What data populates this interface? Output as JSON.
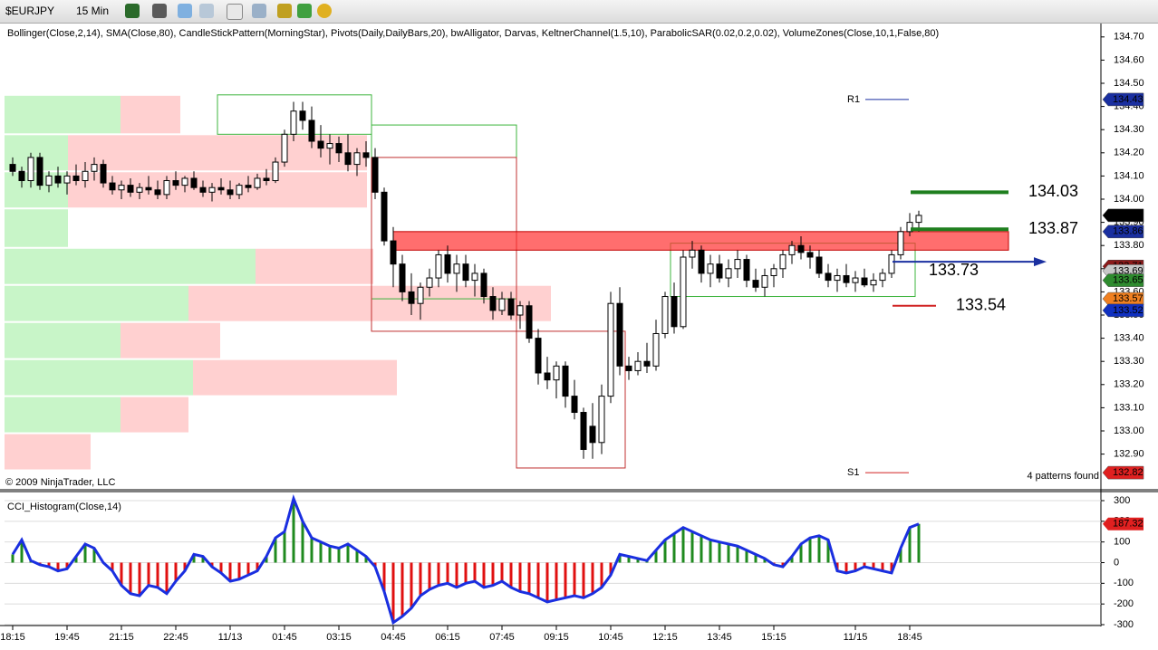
{
  "toolbar": {
    "symbol": "$EURJPY",
    "interval": "15 Min"
  },
  "chart_data": [
    {
      "type": "candlestick",
      "title": "Bollinger(Close,2,14), SMA(Close,80), CandleStickPattern(MorningStar), Pivots(Daily,DailyBars,20), bwAlligator, Darvas, KeltnerChannel(1.5,10), ParabolicSAR(0.02,0.2,0.02), VolumeZones(Close,10,1,False,80)",
      "copyright": "© 2009 NinjaTrader, LLC",
      "status": "4 patterns found",
      "categories": [
        "18:15",
        null,
        null,
        null,
        null,
        null,
        "19:45",
        null,
        null,
        null,
        null,
        null,
        "21:15",
        null,
        null,
        null,
        null,
        null,
        "22:45",
        null,
        null,
        null,
        null,
        null,
        "11/13",
        null,
        null,
        null,
        null,
        null,
        "01:45",
        null,
        null,
        null,
        null,
        null,
        "03:15",
        null,
        null,
        null,
        null,
        null,
        "04:45",
        null,
        null,
        null,
        null,
        null,
        "06:15",
        null,
        null,
        null,
        null,
        null,
        "07:45",
        null,
        null,
        null,
        null,
        null,
        "09:15",
        null,
        null,
        null,
        null,
        null,
        "10:45",
        null,
        null,
        null,
        null,
        null,
        "12:15",
        null,
        null,
        null,
        null,
        null,
        "13:45",
        null,
        null,
        null,
        null,
        null,
        "15:15",
        null,
        null,
        null,
        null,
        null,
        null,
        null,
        null,
        "11/15",
        null,
        null,
        null,
        null,
        null,
        "18:45",
        null
      ],
      "ohlc": [
        [
          134.15,
          134.18,
          134.1,
          134.12
        ],
        [
          134.12,
          134.14,
          134.05,
          134.08
        ],
        [
          134.08,
          134.2,
          134.05,
          134.18
        ],
        [
          134.18,
          134.2,
          134.04,
          134.06
        ],
        [
          134.06,
          134.12,
          134.03,
          134.1
        ],
        [
          134.1,
          134.14,
          134.05,
          134.07
        ],
        [
          134.07,
          134.12,
          134.02,
          134.1
        ],
        [
          134.1,
          134.15,
          134.06,
          134.08
        ],
        [
          134.08,
          134.16,
          134.05,
          134.12
        ],
        [
          134.12,
          134.18,
          134.08,
          134.15
        ],
        [
          134.15,
          134.17,
          134.05,
          134.07
        ],
        [
          134.07,
          134.1,
          134.02,
          134.04
        ],
        [
          134.04,
          134.08,
          134.0,
          134.06
        ],
        [
          134.06,
          134.09,
          134.01,
          134.03
        ],
        [
          134.03,
          134.07,
          134.0,
          134.05
        ],
        [
          134.05,
          134.1,
          134.02,
          134.04
        ],
        [
          134.04,
          134.08,
          134.0,
          134.02
        ],
        [
          134.02,
          134.1,
          134.0,
          134.08
        ],
        [
          134.08,
          134.12,
          134.04,
          134.06
        ],
        [
          134.06,
          134.1,
          134.03,
          134.09
        ],
        [
          134.09,
          134.12,
          134.04,
          134.05
        ],
        [
          134.05,
          134.08,
          134.01,
          134.03
        ],
        [
          134.03,
          134.07,
          133.99,
          134.05
        ],
        [
          134.05,
          134.09,
          134.02,
          134.04
        ],
        [
          134.04,
          134.08,
          134.0,
          134.02
        ],
        [
          134.02,
          134.07,
          134.0,
          134.06
        ],
        [
          134.06,
          134.1,
          134.03,
          134.05
        ],
        [
          134.05,
          134.11,
          134.04,
          134.09
        ],
        [
          134.09,
          134.13,
          134.06,
          134.08
        ],
        [
          134.08,
          134.18,
          134.07,
          134.16
        ],
        [
          134.16,
          134.3,
          134.14,
          134.28
        ],
        [
          134.28,
          134.42,
          134.25,
          134.38
        ],
        [
          134.38,
          134.42,
          134.3,
          134.34
        ],
        [
          134.34,
          134.4,
          134.22,
          134.25
        ],
        [
          134.25,
          134.32,
          134.18,
          134.22
        ],
        [
          134.22,
          134.28,
          134.15,
          134.24
        ],
        [
          134.24,
          134.27,
          134.16,
          134.2
        ],
        [
          134.2,
          134.28,
          134.12,
          134.15
        ],
        [
          134.15,
          134.22,
          134.1,
          134.2
        ],
        [
          134.2,
          134.25,
          134.14,
          134.18
        ],
        [
          134.18,
          134.22,
          134.0,
          134.03
        ],
        [
          134.03,
          134.05,
          133.8,
          133.82
        ],
        [
          133.82,
          133.88,
          133.62,
          133.72
        ],
        [
          133.72,
          133.76,
          133.56,
          133.6
        ],
        [
          133.6,
          133.68,
          133.5,
          133.55
        ],
        [
          133.55,
          133.64,
          133.48,
          133.62
        ],
        [
          133.62,
          133.7,
          133.58,
          133.66
        ],
        [
          133.66,
          133.78,
          133.62,
          133.76
        ],
        [
          133.76,
          133.8,
          133.64,
          133.68
        ],
        [
          133.68,
          133.76,
          133.6,
          133.72
        ],
        [
          133.72,
          133.76,
          133.62,
          133.65
        ],
        [
          133.65,
          133.72,
          133.58,
          133.68
        ],
        [
          133.68,
          133.7,
          133.55,
          133.58
        ],
        [
          133.58,
          133.62,
          133.48,
          133.52
        ],
        [
          133.52,
          133.6,
          133.5,
          133.57
        ],
        [
          133.57,
          133.6,
          133.48,
          133.5
        ],
        [
          133.5,
          133.56,
          133.44,
          133.54
        ],
        [
          133.54,
          133.56,
          133.38,
          133.4
        ],
        [
          133.4,
          133.44,
          133.2,
          133.25
        ],
        [
          133.25,
          133.32,
          133.18,
          133.22
        ],
        [
          133.22,
          133.3,
          133.14,
          133.28
        ],
        [
          133.28,
          133.3,
          133.1,
          133.15
        ],
        [
          133.15,
          133.22,
          133.05,
          133.08
        ],
        [
          133.08,
          133.1,
          132.88,
          132.92
        ],
        [
          133.02,
          133.12,
          132.88,
          132.95
        ],
        [
          132.95,
          133.2,
          132.9,
          133.15
        ],
        [
          133.15,
          133.6,
          133.12,
          133.55
        ],
        [
          133.55,
          133.62,
          133.24,
          133.28
        ],
        [
          133.28,
          133.32,
          133.22,
          133.26
        ],
        [
          133.26,
          133.34,
          133.24,
          133.3
        ],
        [
          133.3,
          133.38,
          133.25,
          133.28
        ],
        [
          133.28,
          133.48,
          133.26,
          133.42
        ],
        [
          133.42,
          133.6,
          133.4,
          133.58
        ],
        [
          133.58,
          133.64,
          133.42,
          133.45
        ],
        [
          133.45,
          133.78,
          133.44,
          133.75
        ],
        [
          133.75,
          133.82,
          133.7,
          133.78
        ],
        [
          133.78,
          133.8,
          133.64,
          133.68
        ],
        [
          133.68,
          133.76,
          133.62,
          133.72
        ],
        [
          133.72,
          133.76,
          133.64,
          133.66
        ],
        [
          133.66,
          133.74,
          133.62,
          133.7
        ],
        [
          133.7,
          133.78,
          133.66,
          133.74
        ],
        [
          133.74,
          133.76,
          133.62,
          133.65
        ],
        [
          133.65,
          133.7,
          133.6,
          133.62
        ],
        [
          133.62,
          133.7,
          133.58,
          133.67
        ],
        [
          133.67,
          133.72,
          133.62,
          133.7
        ],
        [
          133.7,
          133.78,
          133.66,
          133.76
        ],
        [
          133.76,
          133.82,
          133.72,
          133.8
        ],
        [
          133.8,
          133.84,
          133.74,
          133.77
        ],
        [
          133.77,
          133.8,
          133.7,
          133.75
        ],
        [
          133.75,
          133.78,
          133.66,
          133.68
        ],
        [
          133.68,
          133.72,
          133.62,
          133.65
        ],
        [
          133.65,
          133.7,
          133.6,
          133.67
        ],
        [
          133.67,
          133.72,
          133.62,
          133.64
        ],
        [
          133.64,
          133.69,
          133.6,
          133.66
        ],
        [
          133.66,
          133.7,
          133.62,
          133.63
        ],
        [
          133.63,
          133.68,
          133.6,
          133.65
        ],
        [
          133.65,
          133.7,
          133.62,
          133.68
        ],
        [
          133.68,
          133.78,
          133.66,
          133.76
        ],
        [
          133.76,
          133.88,
          133.74,
          133.86
        ],
        [
          133.86,
          133.94,
          133.84,
          133.9
        ],
        [
          133.9,
          133.95,
          133.86,
          133.93
        ]
      ],
      "up_color": "#ffffff",
      "down_color": "#000000",
      "ylim": [
        132.75,
        134.75
      ],
      "yticks": [
        {
          "value": 134.7,
          "label": "134.70"
        },
        {
          "value": 134.6,
          "label": "134.60"
        },
        {
          "value": 134.5,
          "label": "134.50"
        },
        {
          "value": 134.4,
          "label": "134.40"
        },
        {
          "value": 134.3,
          "label": "134.30"
        },
        {
          "value": 134.2,
          "label": "134.20"
        },
        {
          "value": 134.1,
          "label": "134.10"
        },
        {
          "value": 134.0,
          "label": "134.00"
        },
        {
          "value": 133.9,
          "label": "133.90"
        },
        {
          "value": 133.8,
          "label": "133.80"
        },
        {
          "value": 133.7,
          "label": "133.70"
        },
        {
          "value": 133.6,
          "label": "133.60"
        },
        {
          "value": 133.5,
          "label": "133.50"
        },
        {
          "value": 133.4,
          "label": "133.40"
        },
        {
          "value": 133.3,
          "label": "133.30"
        },
        {
          "value": 133.2,
          "label": "133.20"
        },
        {
          "value": 133.1,
          "label": "133.10"
        },
        {
          "value": 133.0,
          "label": "133.00"
        },
        {
          "value": 132.9,
          "label": "132.90"
        }
      ],
      "volume_zones": [
        {
          "range": [
            134.28,
            134.45
          ],
          "up": 128,
          "down": 66
        },
        {
          "range": [
            134.12,
            134.28
          ],
          "up": 70,
          "down": 330
        },
        {
          "range": [
            133.96,
            134.12
          ],
          "up": 70,
          "down": 330
        },
        {
          "range": [
            133.79,
            133.96
          ],
          "up": 70,
          "down": 0
        },
        {
          "range": [
            133.63,
            133.79
          ],
          "up": 277,
          "down": 130
        },
        {
          "range": [
            133.47,
            133.63
          ],
          "up": 203,
          "down": 400
        },
        {
          "range": [
            133.31,
            133.47
          ],
          "up": 128,
          "down": 110
        },
        {
          "range": [
            133.15,
            133.31
          ],
          "up": 208,
          "down": 225
        },
        {
          "range": [
            132.99,
            133.15
          ],
          "up": 128,
          "down": 75
        },
        {
          "range": [
            132.83,
            132.99
          ],
          "up": 0,
          "down": 95
        }
      ],
      "volume_colors": {
        "up": "#c8f5c8",
        "down": "#ffd0d0"
      },
      "darvas_boxes": [
        {
          "from": 23,
          "to": 40,
          "range": [
            134.28,
            134.45
          ],
          "color": "#3cb43c"
        },
        {
          "from": 40,
          "to": 56,
          "range": [
            133.57,
            134.32
          ],
          "color": "#3cb43c"
        },
        {
          "from": 40,
          "to": 56,
          "range": [
            133.43,
            134.18
          ],
          "color": "#c03030"
        },
        {
          "from": 56,
          "to": 68,
          "range": [
            132.84,
            133.43
          ],
          "color": "#c03030"
        },
        {
          "from": 73,
          "to": 100,
          "range": [
            133.58,
            133.81
          ],
          "color": "#3cb43c"
        }
      ],
      "resistance_zone": {
        "range": [
          133.78,
          133.86
        ],
        "color": "#ff3030"
      },
      "pivots": [
        {
          "label": "R1",
          "value": 134.43,
          "color": "#1a2fa0"
        },
        {
          "label": "S1",
          "value": 132.82,
          "color": "#d02020"
        }
      ],
      "levels": [
        {
          "value": 134.03,
          "color": "#1f7f1f",
          "style": "line"
        },
        {
          "value": 133.87,
          "color": "#1f7f1f",
          "style": "line"
        },
        {
          "value": 133.73,
          "color": "#1a2fa0",
          "style": "arrow"
        },
        {
          "value": 133.54,
          "color": "#d02020",
          "style": "line"
        }
      ],
      "price_markers": [
        {
          "value": 134.43,
          "color": "#1a2fa0",
          "text_color": "#fff"
        },
        {
          "value": 133.93,
          "color": "#000000",
          "text_color": "#fff"
        },
        {
          "value": 133.86,
          "color": "#1a2fa0",
          "text_color": "#fff"
        },
        {
          "value": 133.71,
          "color": "#8b1a1a",
          "text_color": "#fff"
        },
        {
          "value": 133.69,
          "color": "#c8c8c8",
          "text_color": "#000"
        },
        {
          "value": 133.65,
          "color": "#2e8b2e",
          "text_color": "#fff"
        },
        {
          "value": 133.57,
          "color": "#f08020",
          "text_color": "#fff"
        },
        {
          "value": 133.52,
          "color": "#1030c0",
          "text_color": "#fff"
        },
        {
          "value": 132.82,
          "color": "#e02020",
          "text_color": "#fff"
        }
      ]
    },
    {
      "type": "histogram",
      "title": "CCI_Histogram(Close,14)",
      "values": [
        40,
        110,
        10,
        -10,
        -20,
        -40,
        -30,
        30,
        90,
        70,
        0,
        -40,
        -110,
        -150,
        -160,
        -110,
        -120,
        -150,
        -90,
        -40,
        40,
        30,
        -20,
        -50,
        -90,
        -80,
        -60,
        -40,
        30,
        120,
        150,
        310,
        200,
        120,
        100,
        80,
        70,
        90,
        60,
        30,
        -20,
        -140,
        -290,
        -260,
        -220,
        -160,
        -130,
        -110,
        -100,
        -120,
        -100,
        -90,
        -120,
        -110,
        -90,
        -120,
        -140,
        -150,
        -170,
        -190,
        -180,
        -170,
        -160,
        -170,
        -150,
        -120,
        -60,
        40,
        30,
        20,
        10,
        60,
        110,
        140,
        170,
        150,
        130,
        110,
        100,
        90,
        80,
        60,
        40,
        20,
        -10,
        -20,
        30,
        90,
        120,
        130,
        110,
        -40,
        -50,
        -40,
        -20,
        -30,
        -40,
        -50,
        70,
        170,
        187.32
      ],
      "positive_color": "#1f8a1f",
      "negative_color": "#e01010",
      "line_color": "#1a2fe0",
      "ylim": [
        -300,
        335
      ],
      "yticks": [
        300,
        200,
        100,
        0,
        -100,
        -200,
        -300
      ],
      "marker_color": "#e02020"
    }
  ]
}
